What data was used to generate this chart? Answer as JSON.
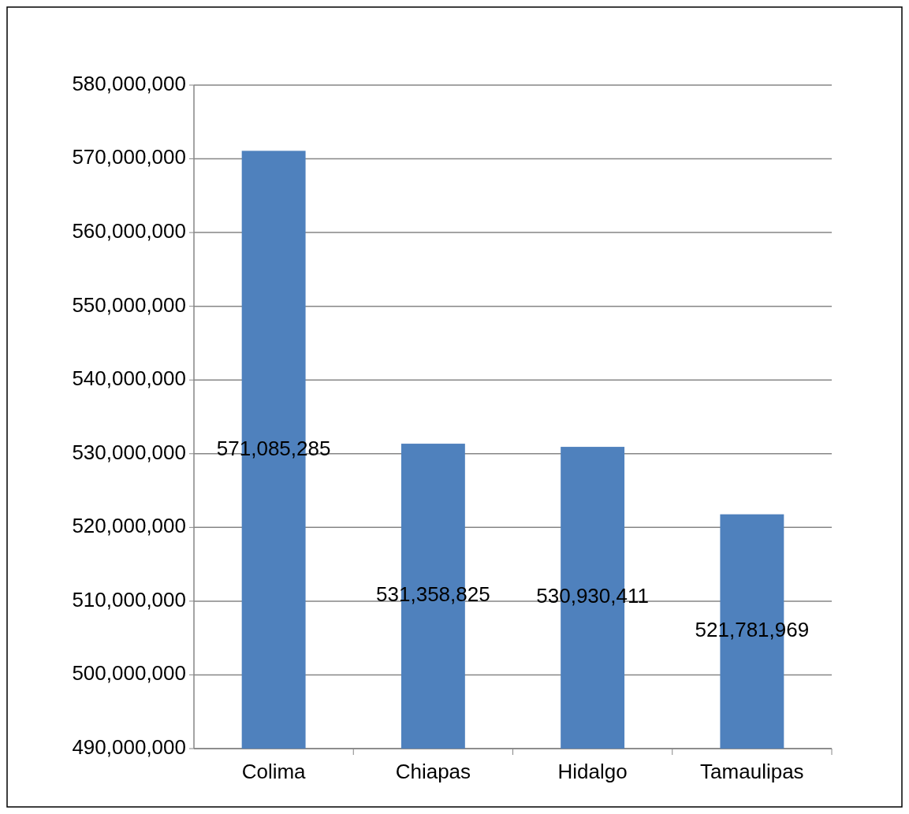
{
  "chart_data": {
    "type": "bar",
    "categories": [
      "Colima",
      "Chiapas",
      "Hidalgo",
      "Tamaulipas"
    ],
    "values": [
      571085285,
      531358825,
      530930411,
      521781969
    ],
    "value_labels": [
      "571,085,285",
      "531,358,825",
      "530,930,411",
      "521,781,969"
    ],
    "color": "#4f81bd",
    "ylim": [
      490000000,
      580000000
    ],
    "yticks": [
      {
        "value": 490000000,
        "label": "490,000,000"
      },
      {
        "value": 500000000,
        "label": "500,000,000"
      },
      {
        "value": 510000000,
        "label": "510,000,000"
      },
      {
        "value": 520000000,
        "label": "520,000,000"
      },
      {
        "value": 530000000,
        "label": "530,000,000"
      },
      {
        "value": 540000000,
        "label": "540,000,000"
      },
      {
        "value": 550000000,
        "label": "550,000,000"
      },
      {
        "value": 560000000,
        "label": "560,000,000"
      },
      {
        "value": 570000000,
        "label": "570,000,000"
      },
      {
        "value": 580000000,
        "label": "580,000,000"
      }
    ],
    "grid": "y"
  }
}
